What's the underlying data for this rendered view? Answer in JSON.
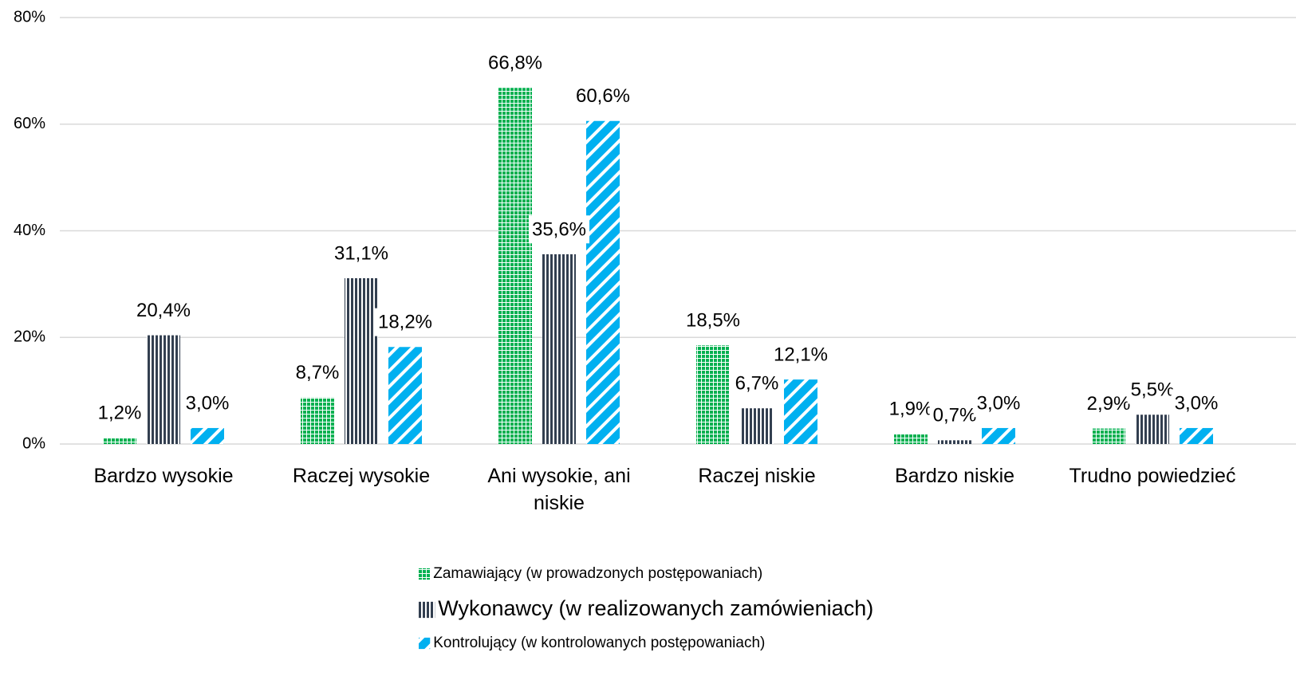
{
  "chart_data": {
    "type": "bar",
    "categories": [
      "Bardzo wysokie",
      "Raczej wysokie",
      "Ani wysokie, ani niskie",
      "Raczej niskie",
      "Bardzo niskie",
      "Trudno powiedzieć"
    ],
    "series": [
      {
        "name": "Zamawiający (w prowadzonych postępowaniach)",
        "color": "#00b050",
        "pattern": "grid",
        "values": [
          1.2,
          8.7,
          66.8,
          18.5,
          1.9,
          2.9
        ],
        "value_labels": [
          "1,2%",
          "8,7%",
          "66,8%",
          "18,5%",
          "1,9%",
          "2,9%"
        ]
      },
      {
        "name": "Wykonawcy (w realizowanych zamówieniach)",
        "color": "#333f50",
        "pattern": "vertical",
        "values": [
          20.4,
          31.1,
          35.6,
          6.7,
          0.7,
          5.5
        ],
        "value_labels": [
          "20,4%",
          "31,1%",
          "35,6%",
          "6,7%",
          "0,7%",
          "5,5%"
        ]
      },
      {
        "name": "Kontrolujący (w kontrolowanych postępowaniach)",
        "color": "#00b0f0",
        "pattern": "diagonal",
        "values": [
          3.0,
          18.2,
          60.6,
          12.1,
          3.0,
          3.0
        ],
        "value_labels": [
          "3,0%",
          "18,2%",
          "60,6%",
          "12,1%",
          "3,0%",
          "3,0%"
        ]
      }
    ],
    "ylim": [
      0,
      80
    ],
    "yticks": [
      {
        "value": 0,
        "label": "0%"
      },
      {
        "value": 20,
        "label": "20%"
      },
      {
        "value": 40,
        "label": "40%"
      },
      {
        "value": 60,
        "label": "60%"
      },
      {
        "value": 80,
        "label": "80%"
      }
    ],
    "grid": true
  }
}
